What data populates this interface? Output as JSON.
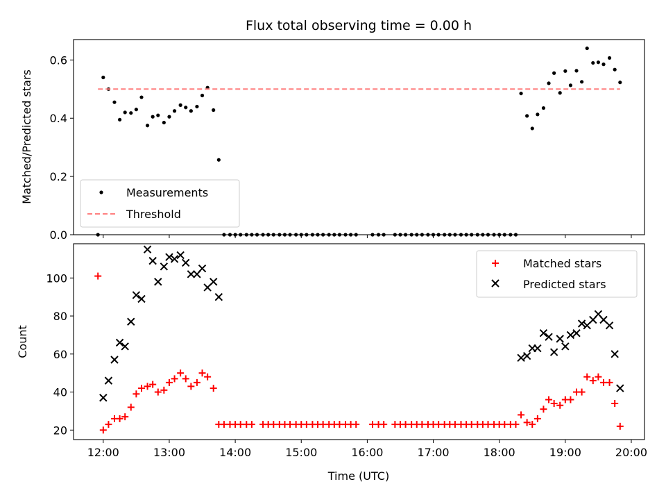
{
  "chart_data": [
    {
      "type": "scatter",
      "title": "Flux total observing time = 0.00 h",
      "xlabel": "",
      "ylabel": "Matched/Predicted stars",
      "x_unit": "hours (UTC)",
      "xlim": [
        11.55,
        20.2
      ],
      "ylim": [
        0,
        0.67
      ],
      "yticks": [
        0.0,
        0.2,
        0.4,
        0.6
      ],
      "ytick_labels": [
        "0.0",
        "0.2",
        "0.4",
        "0.6"
      ],
      "grid": false,
      "legend_position": "lower-left",
      "series": [
        {
          "name": "Measurements",
          "marker": "dot",
          "color": "#000000",
          "x": [
            11.92,
            12.0,
            12.08,
            12.17,
            12.25,
            12.33,
            12.42,
            12.5,
            12.58,
            12.67,
            12.75,
            12.83,
            12.92,
            13.0,
            13.08,
            13.17,
            13.25,
            13.33,
            13.42,
            13.5,
            13.58,
            13.67,
            13.75,
            13.83,
            13.92,
            14.0,
            14.08,
            14.17,
            14.25,
            14.33,
            14.42,
            14.5,
            14.58,
            14.67,
            14.75,
            14.83,
            14.92,
            15.0,
            15.08,
            15.17,
            15.25,
            15.33,
            15.42,
            15.5,
            15.58,
            15.67,
            15.75,
            15.83,
            16.08,
            16.17,
            16.25,
            16.42,
            16.5,
            16.58,
            16.67,
            16.75,
            16.83,
            16.92,
            17.0,
            17.08,
            17.17,
            17.25,
            17.33,
            17.42,
            17.5,
            17.58,
            17.67,
            17.75,
            17.83,
            17.92,
            18.0,
            18.08,
            18.17,
            18.25,
            18.33,
            18.42,
            18.5,
            18.58,
            18.67,
            18.75,
            18.83,
            18.92,
            19.0,
            19.08,
            19.17,
            19.25,
            19.33,
            19.42,
            19.5,
            19.58,
            19.67,
            19.75,
            19.83
          ],
          "y": [
            0.0,
            0.54,
            0.5,
            0.455,
            0.395,
            0.42,
            0.418,
            0.43,
            0.472,
            0.375,
            0.405,
            0.41,
            0.385,
            0.405,
            0.425,
            0.445,
            0.437,
            0.425,
            0.44,
            0.478,
            0.505,
            0.428,
            0.257,
            0.0,
            0.0,
            0.0,
            0.0,
            0.0,
            0.0,
            0.0,
            0.0,
            0.0,
            0.0,
            0.0,
            0.0,
            0.0,
            0.0,
            0.0,
            0.0,
            0.0,
            0.0,
            0.0,
            0.0,
            0.0,
            0.0,
            0.0,
            0.0,
            0.0,
            0.0,
            0.0,
            0.0,
            0.0,
            0.0,
            0.0,
            0.0,
            0.0,
            0.0,
            0.0,
            0.0,
            0.0,
            0.0,
            0.0,
            0.0,
            0.0,
            0.0,
            0.0,
            0.0,
            0.0,
            0.0,
            0.0,
            0.0,
            0.0,
            0.0,
            0.0,
            0.485,
            0.408,
            0.365,
            0.413,
            0.435,
            0.52,
            0.555,
            0.487,
            0.562,
            0.513,
            0.563,
            0.525,
            0.64,
            0.59,
            0.592,
            0.585,
            0.607,
            0.567,
            0.523
          ]
        },
        {
          "name": "Threshold",
          "marker": "dashed-line",
          "color": "#ff7f7f",
          "x": [
            11.92,
            19.83
          ],
          "y": [
            0.5,
            0.5
          ]
        }
      ]
    },
    {
      "type": "scatter",
      "title": "",
      "xlabel": "Time (UTC)",
      "ylabel": "Count",
      "x_unit": "hours (UTC)",
      "xlim": [
        11.55,
        20.2
      ],
      "ylim": [
        15,
        118
      ],
      "xticks": [
        12,
        13,
        14,
        15,
        16,
        17,
        18,
        19,
        20
      ],
      "xtick_labels": [
        "12:00",
        "13:00",
        "14:00",
        "15:00",
        "16:00",
        "17:00",
        "18:00",
        "19:00",
        "20:00"
      ],
      "yticks": [
        20,
        40,
        60,
        80,
        100
      ],
      "ytick_labels": [
        "20",
        "40",
        "60",
        "80",
        "100"
      ],
      "grid": false,
      "legend_position": "top-right",
      "series": [
        {
          "name": "Matched stars",
          "marker": "plus",
          "color": "#ff0000",
          "x": [
            11.92,
            12.0,
            12.08,
            12.17,
            12.25,
            12.33,
            12.42,
            12.5,
            12.58,
            12.67,
            12.75,
            12.83,
            12.92,
            13.0,
            13.08,
            13.17,
            13.25,
            13.33,
            13.42,
            13.5,
            13.58,
            13.67,
            13.75,
            13.83,
            13.92,
            14.0,
            14.08,
            14.17,
            14.25,
            14.42,
            14.5,
            14.58,
            14.67,
            14.75,
            14.83,
            14.92,
            15.0,
            15.08,
            15.17,
            15.25,
            15.33,
            15.42,
            15.5,
            15.58,
            15.67,
            15.75,
            15.83,
            16.08,
            16.17,
            16.25,
            16.42,
            16.5,
            16.58,
            16.67,
            16.75,
            16.83,
            16.92,
            17.0,
            17.08,
            17.17,
            17.25,
            17.33,
            17.42,
            17.5,
            17.58,
            17.67,
            17.75,
            17.83,
            17.92,
            18.0,
            18.08,
            18.17,
            18.25,
            18.33,
            18.42,
            18.5,
            18.58,
            18.67,
            18.75,
            18.83,
            18.92,
            19.0,
            19.08,
            19.17,
            19.25,
            19.33,
            19.42,
            19.5,
            19.58,
            19.67,
            19.75,
            19.83
          ],
          "y": [
            101,
            20,
            23,
            26,
            26,
            27,
            32,
            39,
            42,
            43,
            44,
            40,
            41,
            45,
            47,
            50,
            47,
            43,
            45,
            50,
            48,
            42,
            23,
            23,
            23,
            23,
            23,
            23,
            23,
            23,
            23,
            23,
            23,
            23,
            23,
            23,
            23,
            23,
            23,
            23,
            23,
            23,
            23,
            23,
            23,
            23,
            23,
            23,
            23,
            23,
            23,
            23,
            23,
            23,
            23,
            23,
            23,
            23,
            23,
            23,
            23,
            23,
            23,
            23,
            23,
            23,
            23,
            23,
            23,
            23,
            23,
            23,
            23,
            28,
            24,
            23,
            26,
            31,
            36,
            34,
            33,
            36,
            36,
            40,
            40,
            48,
            46,
            48,
            45,
            45,
            34,
            22
          ]
        },
        {
          "name": "Predicted stars",
          "marker": "x",
          "color": "#000000",
          "x": [
            12.0,
            12.08,
            12.17,
            12.25,
            12.33,
            12.42,
            12.5,
            12.58,
            12.67,
            12.75,
            12.83,
            12.92,
            13.0,
            13.08,
            13.17,
            13.25,
            13.33,
            13.42,
            13.5,
            13.58,
            13.67,
            13.75,
            18.33,
            18.42,
            18.5,
            18.58,
            18.67,
            18.75,
            18.83,
            18.92,
            19.0,
            19.08,
            19.17,
            19.25,
            19.33,
            19.42,
            19.5,
            19.58,
            19.67,
            19.75,
            19.83
          ],
          "y": [
            37,
            46,
            57,
            66,
            64,
            77,
            91,
            89,
            115,
            109,
            98,
            106,
            111,
            110,
            112,
            108,
            102,
            102,
            105,
            95,
            98,
            90,
            58,
            59,
            63,
            63,
            71,
            69,
            61,
            68,
            64,
            70,
            71,
            76,
            75,
            78,
            81,
            78,
            75,
            60,
            42
          ]
        }
      ]
    }
  ]
}
